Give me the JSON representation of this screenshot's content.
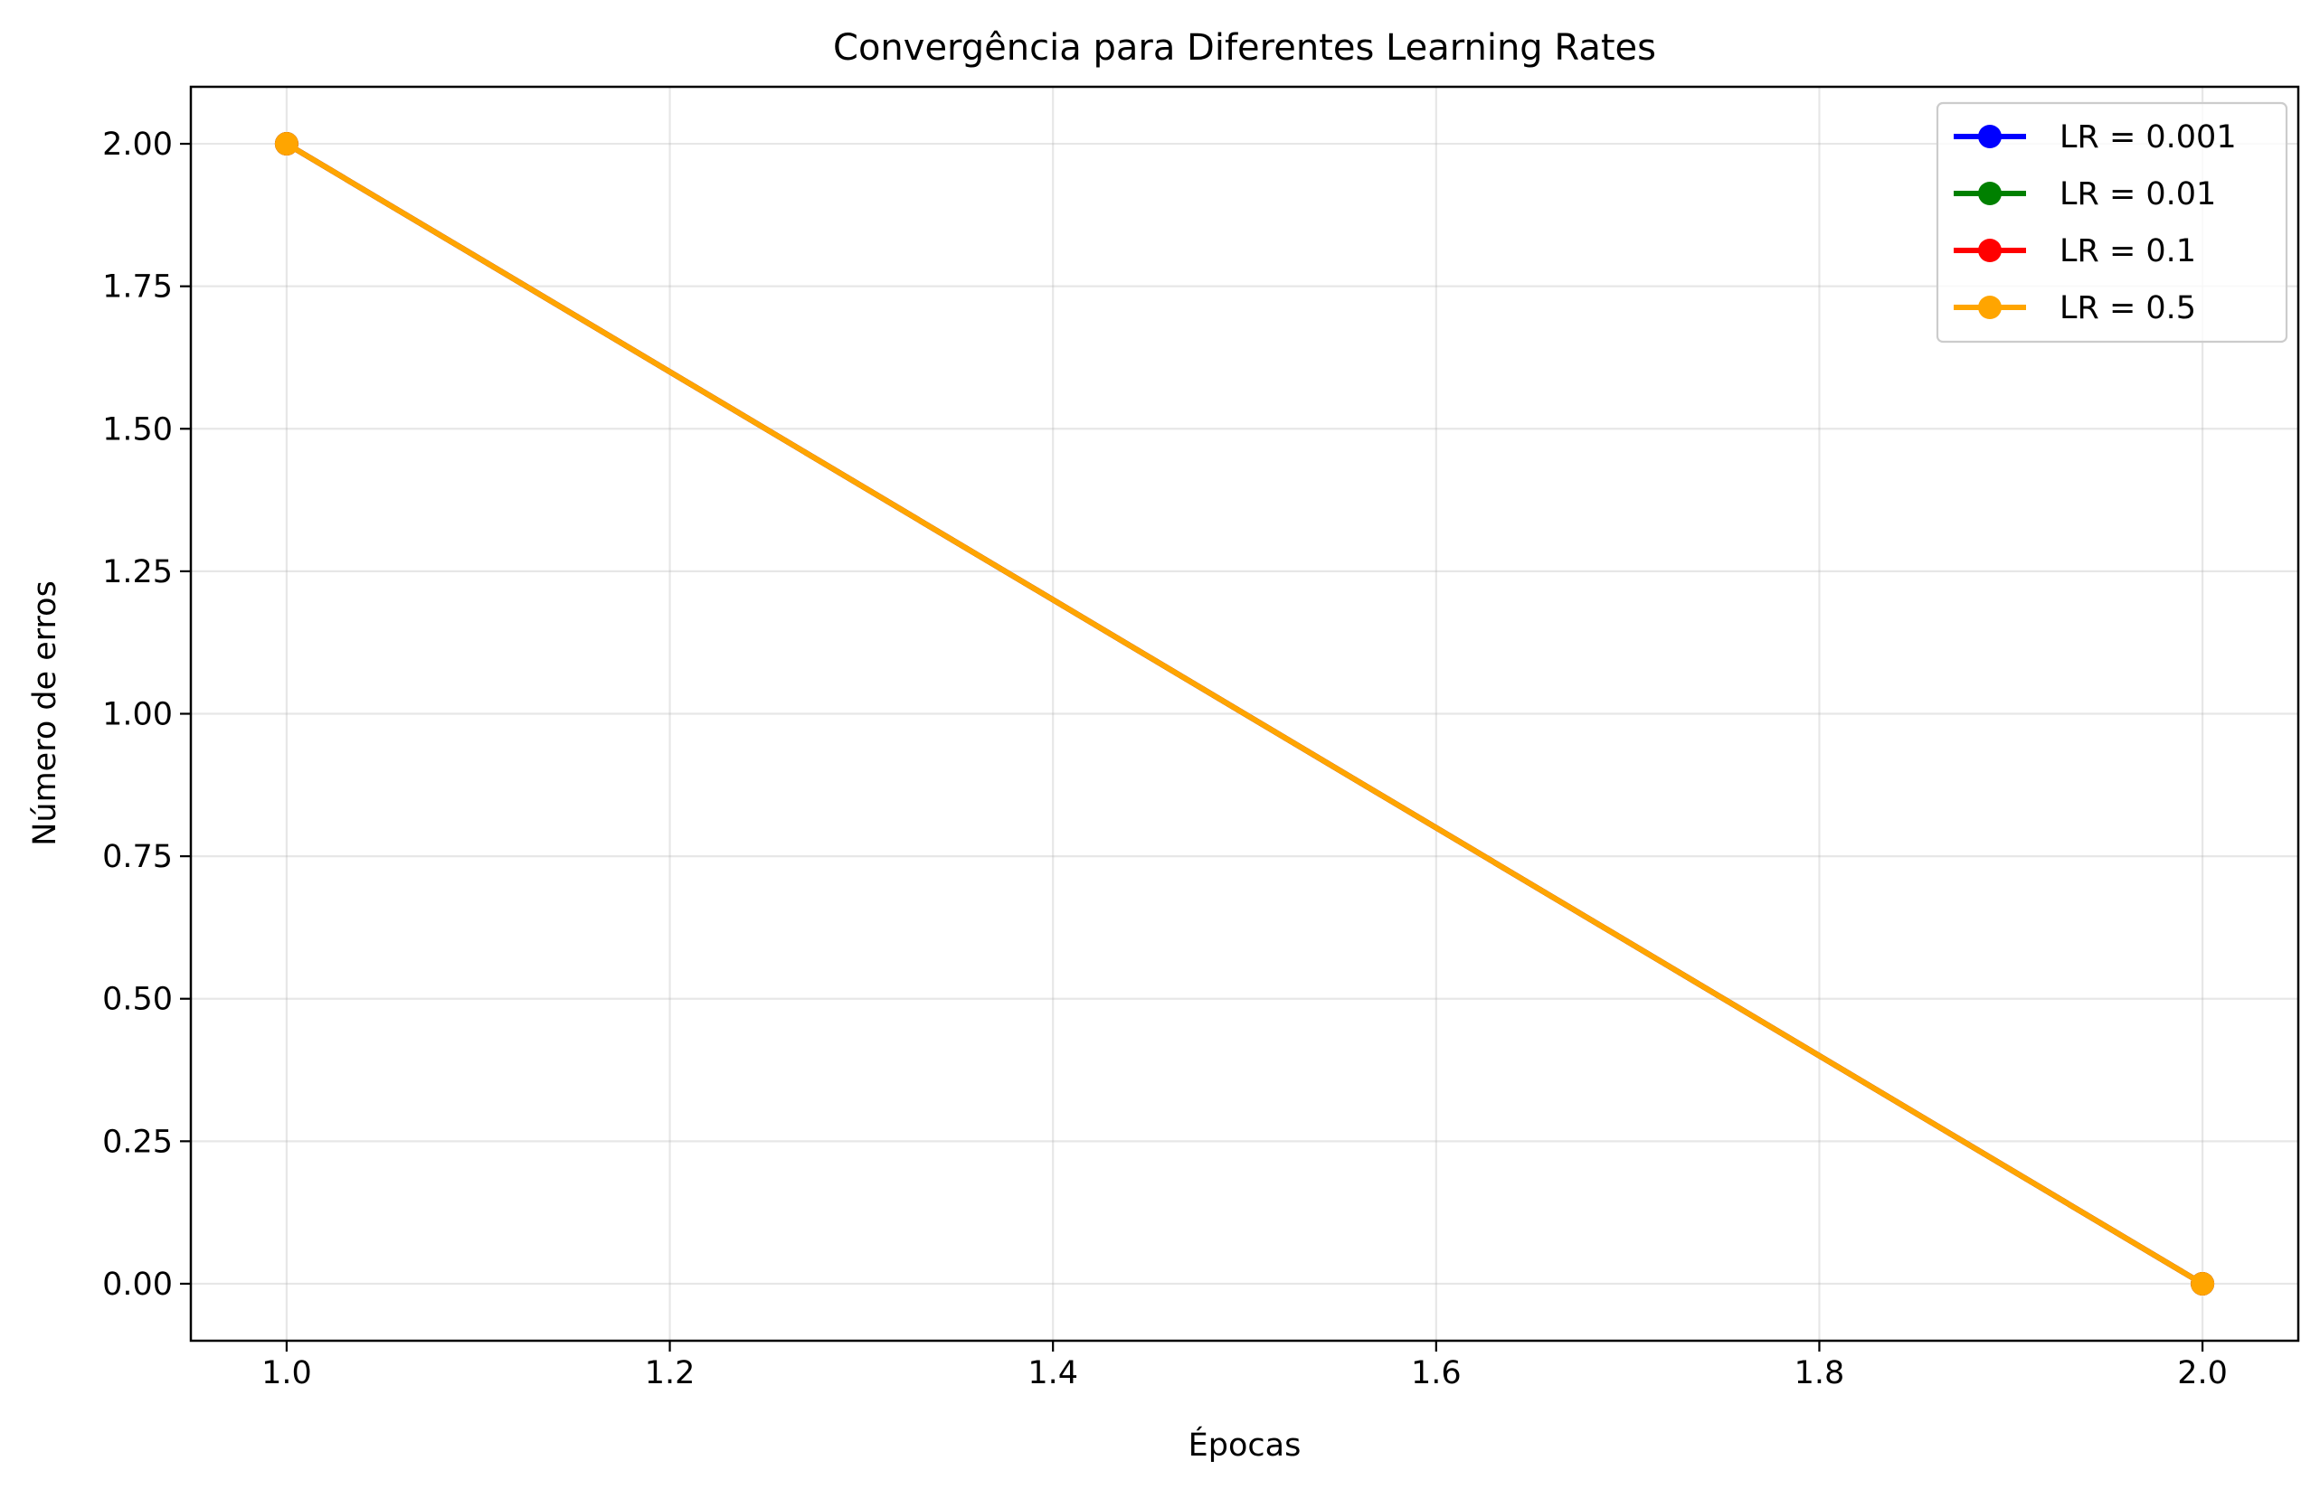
{
  "chart_data": {
    "type": "line",
    "title": "Convergência para Diferentes Learning Rates",
    "xlabel": "Épocas",
    "ylabel": "Número de erros",
    "xlim": [
      0.95,
      2.05
    ],
    "ylim": [
      -0.1,
      2.1
    ],
    "xticks": [
      1.0,
      1.2,
      1.4,
      1.6,
      1.8,
      2.0
    ],
    "xtick_labels": [
      "1.0",
      "1.2",
      "1.4",
      "1.6",
      "1.8",
      "2.0"
    ],
    "yticks": [
      0.0,
      0.25,
      0.5,
      0.75,
      1.0,
      1.25,
      1.5,
      1.75,
      2.0
    ],
    "ytick_labels": [
      "0.00",
      "0.25",
      "0.50",
      "0.75",
      "1.00",
      "1.25",
      "1.50",
      "1.75",
      "2.00"
    ],
    "grid": true,
    "legend_position": "top-right",
    "x": [
      1,
      2
    ],
    "series": [
      {
        "name": "LR = 0.001",
        "values": [
          2,
          0
        ],
        "color": "#0000ff"
      },
      {
        "name": "LR = 0.01",
        "values": [
          2,
          0
        ],
        "color": "#008000"
      },
      {
        "name": "LR = 0.1",
        "values": [
          2,
          0
        ],
        "color": "#ff0000"
      },
      {
        "name": "LR = 0.5",
        "values": [
          2,
          0
        ],
        "color": "#ffa500"
      }
    ]
  }
}
